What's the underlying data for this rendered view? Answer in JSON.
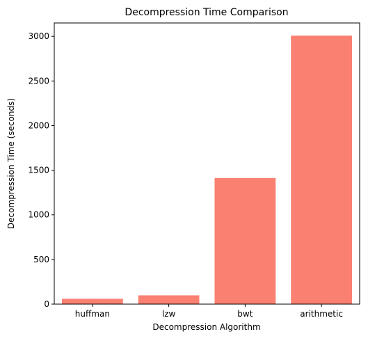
{
  "chart_data": {
    "type": "bar",
    "title": "Decompression Time Comparison",
    "xlabel": "Decompression Algorithm",
    "ylabel": "Decompression Time (seconds)",
    "categories": [
      "huffman",
      "lzw",
      "bwt",
      "arithmetic"
    ],
    "values": [
      60,
      98,
      1413,
      3008
    ],
    "ylim": [
      0,
      3150
    ],
    "yticks": [
      0,
      500,
      1000,
      1500,
      2000,
      2500,
      3000
    ],
    "bar_color": "#fa8072",
    "grid": false,
    "legend": "none"
  }
}
